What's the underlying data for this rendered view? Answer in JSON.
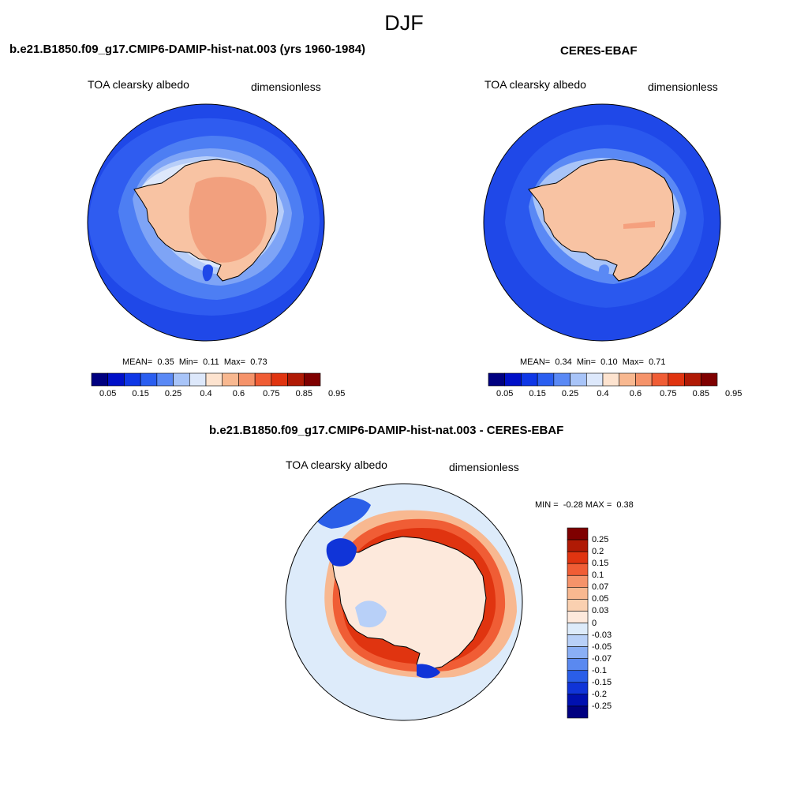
{
  "page": {
    "title": "DJF"
  },
  "panels": [
    {
      "title": "b.e21.B1850.f09_g17.CMIP6-DAMIP-hist-nat.003 (yrs 1960-1984)",
      "variable": "TOA clearsky albedo",
      "units": "dimensionless",
      "stats": {
        "mean_label": "MEAN=",
        "mean": "0.35",
        "min_label": "Min=",
        "min": "0.11",
        "max_label": "Max=",
        "max": "0.73"
      }
    },
    {
      "title": "CERES-EBAF",
      "variable": "TOA clearsky albedo",
      "units": "dimensionless",
      "stats": {
        "mean_label": "MEAN=",
        "mean": "0.34",
        "min_label": "Min=",
        "min": "0.10",
        "max_label": "Max=",
        "max": "0.71"
      }
    },
    {
      "title": "b.e21.B1850.f09_g17.CMIP6-DAMIP-hist-nat.003 - CERES-EBAF",
      "variable": "TOA clearsky albedo",
      "units": "dimensionless",
      "stats": {
        "min_label": "MIN =",
        "min": "-0.28",
        "max_label": "MAX =",
        "max": "0.38"
      }
    }
  ],
  "chart_data": [
    {
      "type": "heatmap",
      "projection": "south polar stereographic",
      "colorbar": {
        "orientation": "horizontal",
        "labels": [
          "0.05",
          "0.15",
          "0.25",
          "0.4",
          "0.6",
          "0.75",
          "0.85",
          "0.95"
        ],
        "colors": [
          "#000080",
          "#0010c8",
          "#0f37e6",
          "#2a5ef0",
          "#5a89f5",
          "#a8c4f8",
          "#dde8fb",
          "#fde3cf",
          "#f8b890",
          "#f5936a",
          "#f05d35",
          "#e03410",
          "#b01a05",
          "#7f0000"
        ]
      },
      "field_summary": {
        "mean": 0.35,
        "min": 0.11,
        "max": 0.73
      }
    },
    {
      "type": "heatmap",
      "projection": "south polar stereographic",
      "colorbar": {
        "orientation": "horizontal",
        "labels": [
          "0.05",
          "0.15",
          "0.25",
          "0.4",
          "0.6",
          "0.75",
          "0.85",
          "0.95"
        ],
        "colors": [
          "#000080",
          "#0010c8",
          "#0f37e6",
          "#2a5ef0",
          "#5a89f5",
          "#a8c4f8",
          "#dde8fb",
          "#fde3cf",
          "#f8b890",
          "#f5936a",
          "#f05d35",
          "#e03410",
          "#b01a05",
          "#7f0000"
        ]
      },
      "field_summary": {
        "mean": 0.34,
        "min": 0.1,
        "max": 0.71
      }
    },
    {
      "type": "heatmap",
      "projection": "south polar stereographic",
      "colorbar": {
        "orientation": "vertical",
        "labels": [
          "0.25",
          "0.2",
          "0.15",
          "0.1",
          "0.07",
          "0.05",
          "0.03",
          "0",
          "-0.03",
          "-0.05",
          "-0.07",
          "-0.1",
          "-0.15",
          "-0.2",
          "-0.25"
        ],
        "colors": [
          "#7f0000",
          "#b01a05",
          "#e03410",
          "#f05d35",
          "#f5936a",
          "#f8b890",
          "#fad0b0",
          "#fde9dc",
          "#ddebfa",
          "#b8d0f8",
          "#8aaff5",
          "#5a89f0",
          "#2a5ee8",
          "#1034d8",
          "#0010b0",
          "#000080"
        ]
      },
      "field_summary": {
        "min": -0.28,
        "max": 0.38
      }
    }
  ],
  "colors": {
    "ocean_model": "#1f48e8",
    "ocean_deep": "#1a3fd8",
    "land_model": "#f2a07e",
    "land_obs": "#f8c3a3",
    "diff_background": "#ddebfa",
    "diff_positive": "#e8582c",
    "diff_negative": "#1f48e8"
  }
}
